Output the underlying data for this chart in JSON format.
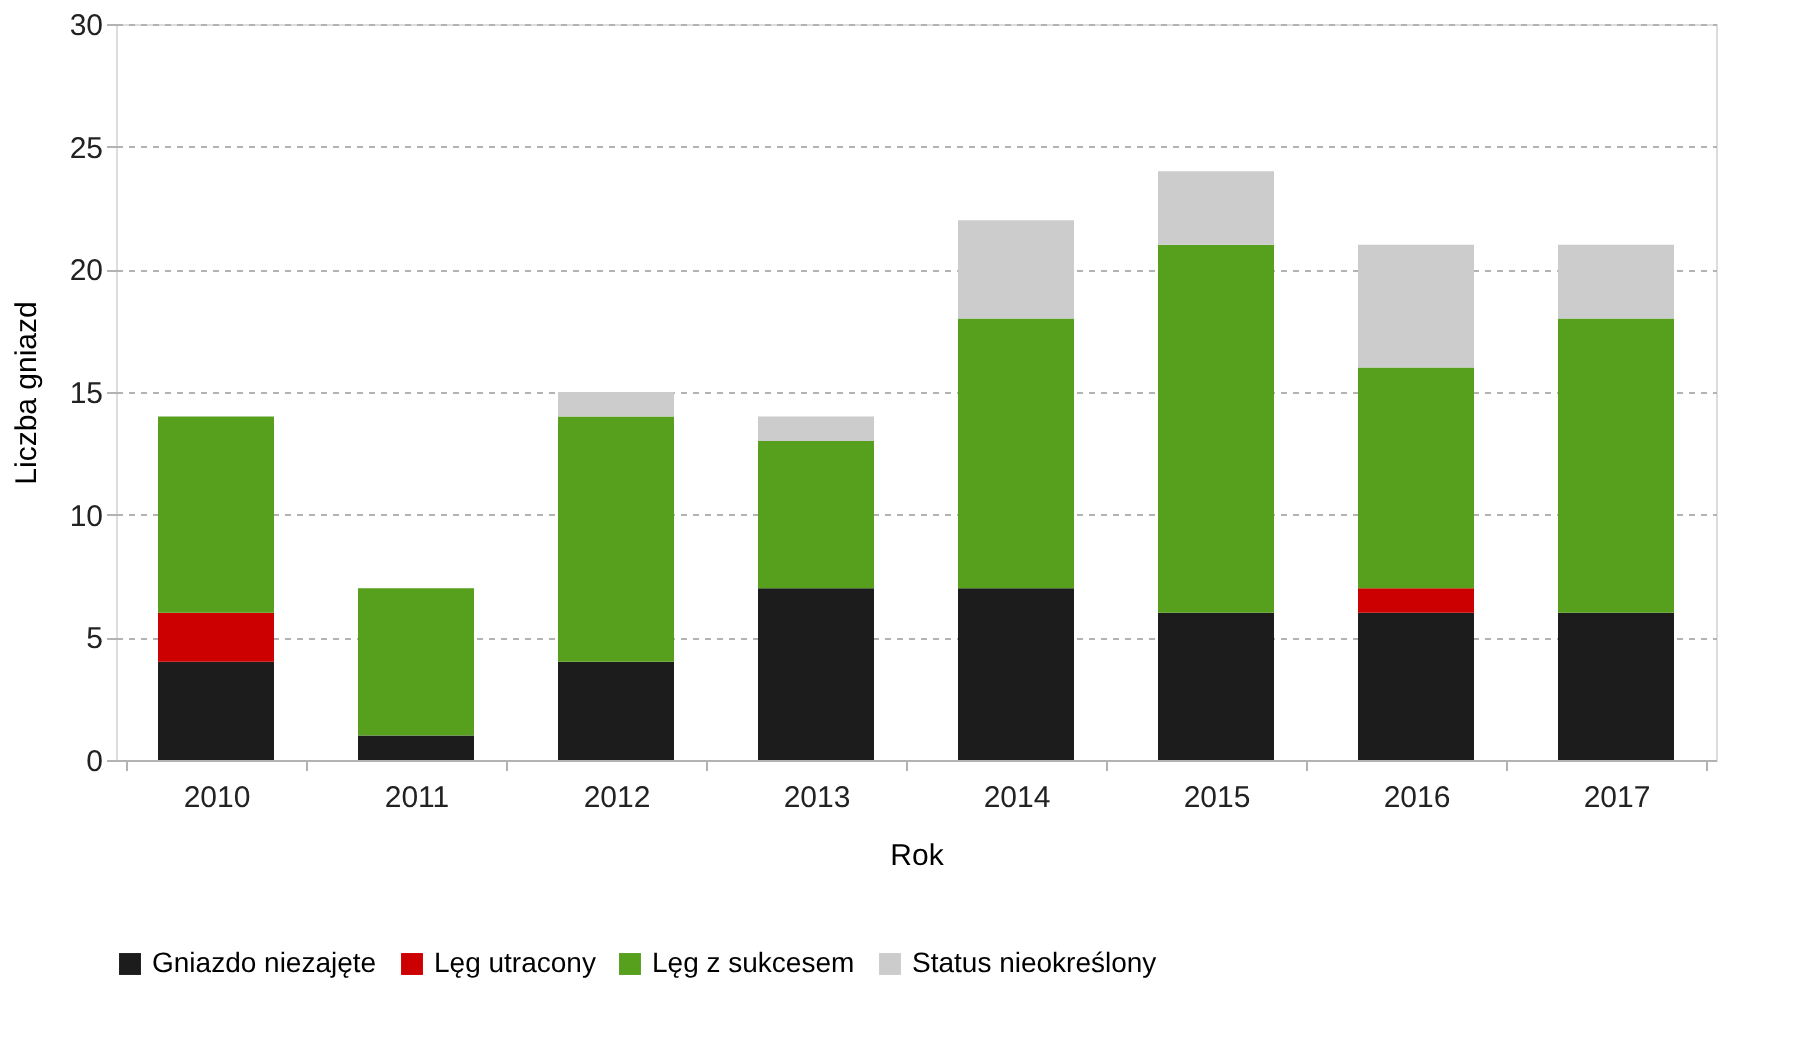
{
  "chart_data": {
    "type": "bar",
    "stacked": true,
    "xlabel": "Rok",
    "ylabel": "Liczba gniazd",
    "categories": [
      "2010",
      "2011",
      "2012",
      "2013",
      "2014",
      "2015",
      "2016",
      "2017"
    ],
    "series": [
      {
        "name": "Gniazdo niezajęte",
        "color": "#1c1c1c",
        "values": [
          4,
          1,
          4,
          7,
          7,
          6,
          6,
          6
        ]
      },
      {
        "name": "Lęg utracony",
        "color": "#cc0000",
        "values": [
          2,
          0,
          0,
          0,
          0,
          0,
          1,
          0
        ]
      },
      {
        "name": "Lęg z sukcesem",
        "color": "#56a01e",
        "values": [
          8,
          6,
          10,
          6,
          11,
          15,
          9,
          12
        ]
      },
      {
        "name": "Status nieokreślony",
        "color": "#cccccc",
        "values": [
          0,
          0,
          1,
          1,
          4,
          3,
          5,
          3
        ]
      }
    ],
    "ylim": [
      0,
      30
    ],
    "yticks": [
      0,
      5,
      10,
      15,
      20,
      25,
      30
    ],
    "grid": "y",
    "legend": "bottom"
  }
}
